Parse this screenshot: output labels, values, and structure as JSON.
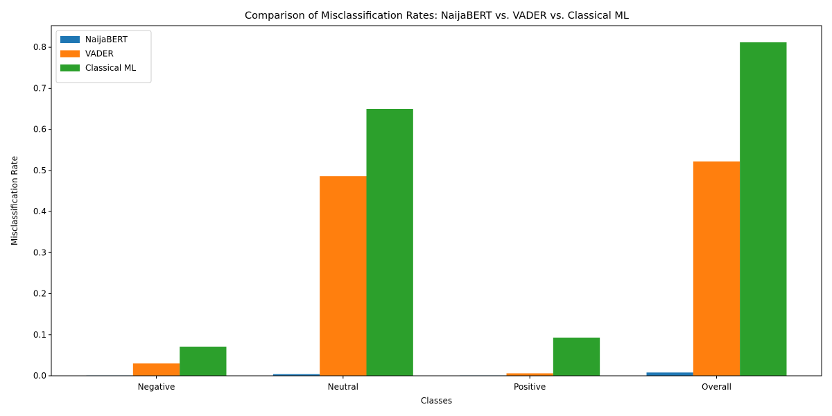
{
  "chart_data": {
    "type": "bar",
    "title": "Comparison of Misclassification Rates: NaijaBERT vs. VADER vs. Classical ML",
    "xlabel": "Classes",
    "ylabel": "Misclassification Rate",
    "categories": [
      "Negative",
      "Neutral",
      "Positive",
      "Overall"
    ],
    "series": [
      {
        "name": "NaijaBERT",
        "color": "#1f77b4",
        "values": [
          0.001,
          0.004,
          0.001,
          0.008
        ]
      },
      {
        "name": "VADER",
        "color": "#ff7f0e",
        "values": [
          0.03,
          0.486,
          0.006,
          0.522
        ]
      },
      {
        "name": "Classical ML",
        "color": "#2ca02c",
        "values": [
          0.071,
          0.65,
          0.093,
          0.812
        ]
      }
    ],
    "ylim": [
      0,
      0.8526
    ],
    "yticks": [
      0.0,
      0.1,
      0.2,
      0.3,
      0.4,
      0.5,
      0.6,
      0.7,
      0.8
    ],
    "ytick_labels": [
      "0.0",
      "0.1",
      "0.2",
      "0.3",
      "0.4",
      "0.5",
      "0.6",
      "0.7",
      "0.8"
    ],
    "legend_position": "top-left",
    "grid": false
  }
}
